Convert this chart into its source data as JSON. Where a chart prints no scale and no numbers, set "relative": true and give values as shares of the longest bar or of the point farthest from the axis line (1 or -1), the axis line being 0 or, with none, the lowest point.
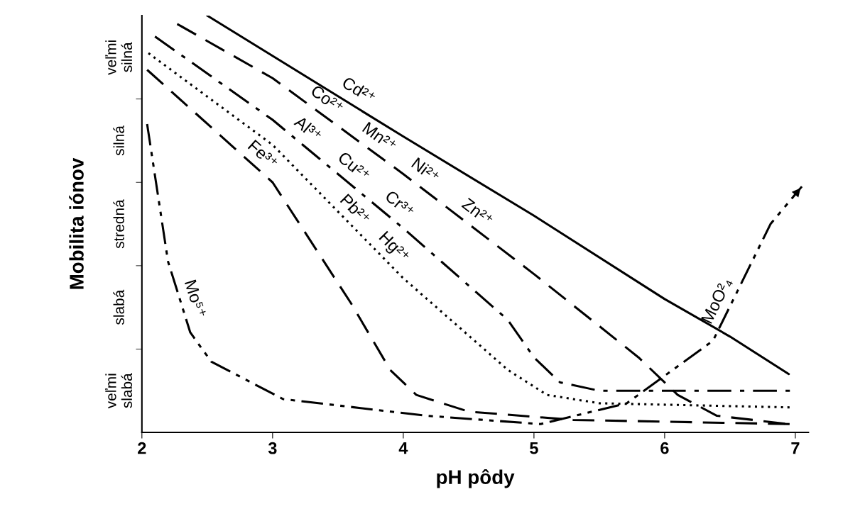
{
  "chart_data": {
    "type": "line",
    "xlabel": "pH pôdy",
    "ylabel": "Mobilita iónov",
    "xlim": [
      2,
      7.1
    ],
    "xticks": [
      2,
      3,
      4,
      5,
      6,
      7
    ],
    "relative": true,
    "y_categories": [
      "veľmi\nsilná",
      "silná",
      "stredná",
      "slabá",
      "veľmi\nslabá"
    ],
    "series": [
      {
        "color": "#000000",
        "line_style": "solid",
        "x": [
          2.5,
          4,
          5,
          6,
          6.5,
          6.95
        ],
        "values": [
          1,
          0.71,
          0.52,
          0.32,
          0.23,
          0.14
        ]
      },
      {
        "color": "#000000",
        "line_style": "dashed",
        "x": [
          2.27,
          3,
          4,
          5,
          5.8,
          6.1,
          6.4,
          6.95
        ],
        "values": [
          0.98,
          0.85,
          0.62,
          0.38,
          0.18,
          0.09,
          0.04,
          0.02
        ]
      },
      {
        "color": "#000000",
        "line_style": "dashdot",
        "x": [
          2.1,
          3,
          4,
          4.8,
          5.0,
          5.2,
          5.5,
          6.97
        ],
        "values": [
          0.95,
          0.75,
          0.49,
          0.27,
          0.18,
          0.12,
          0.1,
          0.1
        ]
      },
      {
        "color": "#000000",
        "line_style": "dotted",
        "x": [
          2.05,
          3,
          4,
          4.8,
          5.1,
          5.5,
          6.97
        ],
        "values": [
          0.91,
          0.69,
          0.37,
          0.15,
          0.09,
          0.07,
          0.06
        ]
      },
      {
        "color": "#000000",
        "line_style": "dashed",
        "x": [
          2.04,
          3,
          3.6,
          3.9,
          4.1,
          4.5,
          5.3,
          6.97
        ],
        "values": [
          0.87,
          0.6,
          0.31,
          0.15,
          0.09,
          0.05,
          0.03,
          0.02
        ]
      },
      {
        "color": "#000000",
        "line_style": "dashdotdot",
        "x": [
          2.04,
          2.2,
          2.37,
          2.53,
          3.08,
          4.18,
          5.05,
          5.71,
          6.37,
          6.81,
          7.05
        ],
        "values": [
          0.74,
          0.41,
          0.24,
          0.17,
          0.08,
          0.04,
          0.02,
          0.07,
          0.22,
          0.5,
          0.59
        ]
      }
    ],
    "annotations": [
      {
        "text": "Cd²⁺",
        "x": 3.6,
        "y": 0.79
      },
      {
        "text": "Co²⁺",
        "x": 3.35,
        "y": 0.77
      },
      {
        "text": "Mn²⁺",
        "x": 3.75,
        "y": 0.68
      },
      {
        "text": "Ni²⁺",
        "x": 4.1,
        "y": 0.6
      },
      {
        "text": "Zn²⁺",
        "x": 4.5,
        "y": 0.5
      },
      {
        "text": "Al³⁺",
        "x": 3.2,
        "y": 0.7
      },
      {
        "text": "Cu²⁺",
        "x": 3.55,
        "y": 0.61
      },
      {
        "text": "Cr³⁺",
        "x": 3.9,
        "y": 0.52
      },
      {
        "text": "Pb²⁺",
        "x": 3.55,
        "y": 0.51
      },
      {
        "text": "Hg²⁺",
        "x": 3.85,
        "y": 0.42
      },
      {
        "text": "Fe³⁺",
        "x": 2.85,
        "y": 0.64
      },
      {
        "text": "Mo⁵⁺",
        "x": 2.3,
        "y": 0.31
      },
      {
        "text": "MoO²₄",
        "x": 6.5,
        "y": 0.3
      }
    ]
  }
}
